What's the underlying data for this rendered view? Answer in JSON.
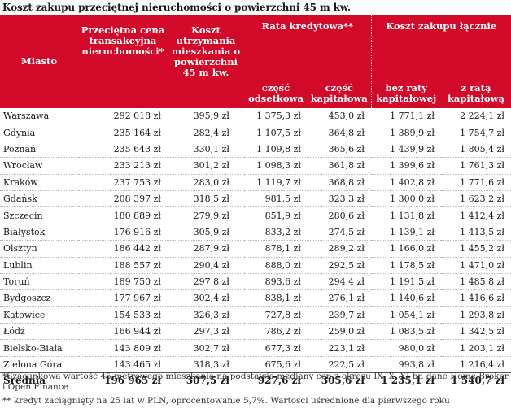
{
  "title": "Koszt zakupu przeciętnej nieruchomości o powierzchni  45 m kw.",
  "header": {
    "city": "Miasto",
    "price": "Przeciętna cena transakcyjna nieruchomości*",
    "upkeep": "Koszt utrzymania mieszkania o powierzchni 45 m kw.",
    "rate_group": "Rata kredytowa**",
    "rate_interest": "część odsetkowa",
    "rate_capital": "część kapitałowa",
    "total_group": "Koszt zakupu łącznie",
    "total_without": "bez raty kapitałowej",
    "total_with": "z ratą kapitałową"
  },
  "rows": [
    [
      "Warszawa",
      "292 018 zł",
      "395,9 zł",
      "1 375,3 zł",
      "453,0 zł",
      "1 771,1 zł",
      "2 224,1 zł"
    ],
    [
      "Gdynia",
      "235 164 zł",
      "282,4 zł",
      "1 107,5 zł",
      "364,8 zł",
      "1 389,9 zł",
      "1 754,7 zł"
    ],
    [
      "Poznań",
      "235 643 zł",
      "330,1 zł",
      "1 109,8 zł",
      "365,6 zł",
      "1 439,9 zł",
      "1 805,4 zł"
    ],
    [
      "Wrocław",
      "233 213 zł",
      "301,2 zł",
      "1 098,3 zł",
      "361,8 zł",
      "1 399,6 zł",
      "1 761,3 zł"
    ],
    [
      "Kraków",
      "237 753 zł",
      "283,0 zł",
      "1 119,7 zł",
      "368,8 zł",
      "1 402,8 zł",
      "1 771,6 zł"
    ],
    [
      "Gdańsk",
      "208 397 zł",
      "318,5 zł",
      "981,5 zł",
      "323,3 zł",
      "1 300,0 zł",
      "1 623,2 zł"
    ],
    [
      "Szczecin",
      "180 889 zł",
      "279,9 zł",
      "851,9 zł",
      "280,6 zł",
      "1 131,8 zł",
      "1 412,4 zł"
    ],
    [
      "Białystok",
      "176 916 zł",
      "305,9 zł",
      "833,2 zł",
      "274,5 zł",
      "1 139,1 zł",
      "1 413,5 zł"
    ],
    [
      "Olsztyn",
      "186 442 zł",
      "287,9 zł",
      "878,1 zł",
      "289,2 zł",
      "1 166,0 zł",
      "1 455,2 zł"
    ],
    [
      "Lublin",
      "188 557 zł",
      "290,4 zł",
      "888,0 zł",
      "292,5 zł",
      "1 178,5 zł",
      "1 471,0 zł"
    ],
    [
      "Toruń",
      "189 750 zł",
      "297,8 zł",
      "893,6 zł",
      "294,4 zł",
      "1 191,5 zł",
      "1 485,8 zł"
    ],
    [
      "Bydgoszcz",
      "177 967 zł",
      "302,4 zł",
      "838,1 zł",
      "276,1 zł",
      "1 140,6 zł",
      "1 416,6 zł"
    ],
    [
      "Katowice",
      "154 533 zł",
      "326,3 zł",
      "727,8 zł",
      "239,7 zł",
      "1 054,1 zł",
      "1 293,8 zł"
    ],
    [
      "Łódź",
      "166 944 zł",
      "297,3 zł",
      "786,2 zł",
      "259,0 zł",
      "1 083,5 zł",
      "1 342,5 zł"
    ],
    [
      "Bielsko-Biała",
      "143 809 zł",
      "302,7 zł",
      "677,3 zł",
      "223,1 zł",
      "980,0 zł",
      "1 203,1 zł"
    ],
    [
      "Zielona Góra",
      "143 465 zł",
      "318,3 zł",
      "675,6 zł",
      "222,5 zł",
      "993,8 zł",
      "1 216,4 zł"
    ]
  ],
  "average": [
    "Średnia",
    "196 965 zł",
    "307,5 zł",
    "927,6 zł",
    "305,6 zł",
    "1 235,1 zł",
    "1 540,7 zł"
  ],
  "notes": [
    "*Szacunkowa wartość 45-metrowego mieszkania na podstawie mediany cen z okresu IX, X, XI br. dane Home Broker i Open Finance",
    "** kredyt zaciągnięty na 25 lat w PLN, oprocentowanie 5,7%. Wartości uśrednione dla pierwszego roku"
  ],
  "colors": {
    "header_bg": "#d3092a",
    "header_text": "#ffffff"
  }
}
